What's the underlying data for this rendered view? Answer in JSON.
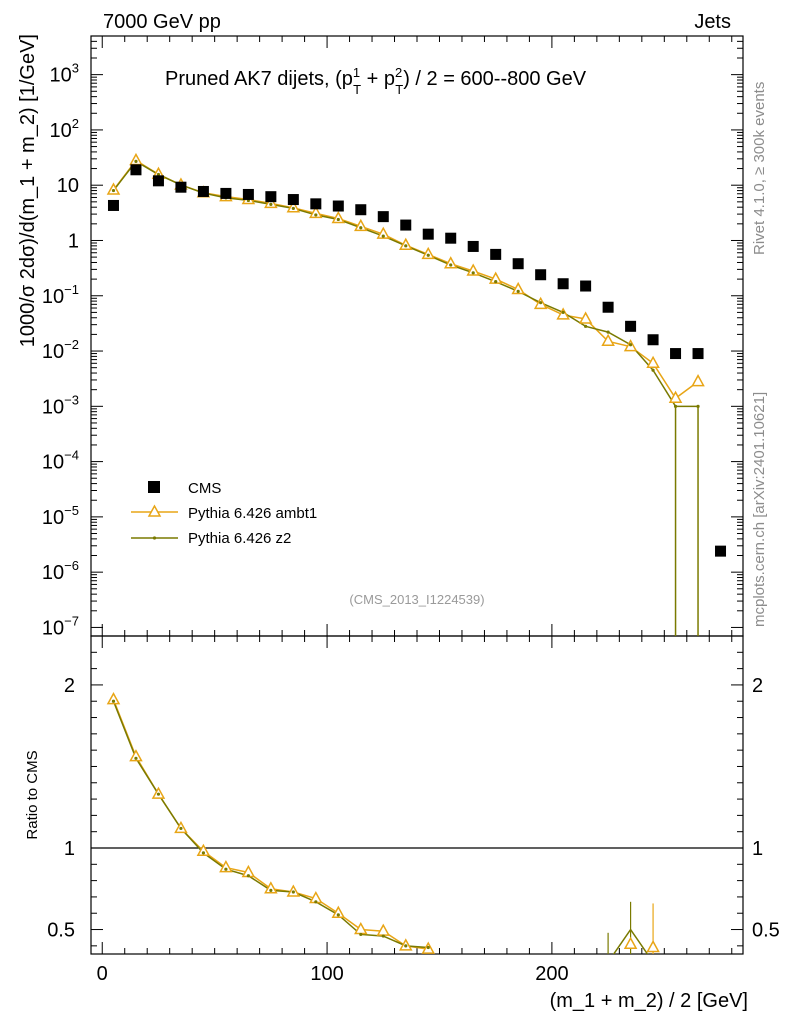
{
  "header": {
    "left": "7000 GeV pp",
    "right": "Jets"
  },
  "side_labels": {
    "rivet": "Rivet 4.1.0, ≥ 300k events",
    "mcplots": "mcplots.cern.ch [arXiv:2401.10621]"
  },
  "colors": {
    "cms": "#000000",
    "ambt1": "#e8a516",
    "z2": "#7a7a00",
    "label_gray": "#8c8c8c"
  },
  "chart_data": [
    {
      "type": "scatter",
      "panel": "main",
      "title_main": "Pruned AK7 dijets, (p",
      "title_sup1": "1",
      "title_sub1": "T",
      "title_mid": " + p",
      "title_sup2": "2",
      "title_sub2": "T",
      "title_end": ") / 2 = 600--800 GeV",
      "ylabel": "1000/σ  2dσ)/d(m_1 + m_2) [1/GeV]",
      "yscale": "log",
      "ylim": [
        7e-08,
        5000
      ],
      "xlim": [
        -5,
        285
      ],
      "ytick_labels": [
        {
          "base": "10",
          "exp": "3",
          "value": 1000
        },
        {
          "base": "10",
          "exp": "2",
          "value": 100
        },
        {
          "base": "10",
          "exp": "",
          "value": 10
        },
        {
          "base": "1",
          "exp": "",
          "value": 1
        },
        {
          "base": "10",
          "exp": "−1",
          "value": 0.1
        },
        {
          "base": "10",
          "exp": "−2",
          "value": 0.01
        },
        {
          "base": "10",
          "exp": "−3",
          "value": 0.001
        },
        {
          "base": "10",
          "exp": "−4",
          "value": 0.0001
        },
        {
          "base": "10",
          "exp": "−5",
          "value": 1e-05
        },
        {
          "base": "10",
          "exp": "−6",
          "value": 1e-06
        },
        {
          "base": "10",
          "exp": "−7",
          "value": 1e-07
        }
      ],
      "watermark": "(CMS_2013_I1224539)",
      "legend_position": "lower-left",
      "legend": [
        "CMS",
        "Pythia 6.426 ambt1",
        "Pythia 6.426 z2"
      ],
      "series": [
        {
          "name": "CMS",
          "x": [
            5,
            15,
            25,
            35,
            45,
            55,
            65,
            75,
            85,
            95,
            105,
            115,
            125,
            135,
            145,
            155,
            165,
            175,
            185,
            195,
            205,
            215,
            225,
            235,
            245,
            255,
            265,
            275
          ],
          "y": [
            4.3,
            19,
            12,
            9.2,
            7.7,
            7.1,
            6.8,
            6.2,
            5.5,
            4.6,
            4.2,
            3.6,
            2.7,
            1.9,
            1.3,
            1.1,
            0.78,
            0.56,
            0.38,
            0.24,
            0.165,
            0.15,
            0.062,
            0.028,
            0.016,
            0.009,
            0.009,
            2.4e-06
          ]
        },
        {
          "name": "Pythia 6.426 ambt1",
          "x": [
            5,
            15,
            25,
            35,
            45,
            55,
            65,
            75,
            85,
            95,
            105,
            115,
            125,
            135,
            145,
            155,
            165,
            175,
            185,
            195,
            205,
            215,
            225,
            235,
            245,
            255,
            265
          ],
          "y": [
            8.2,
            28,
            15.8,
            10.1,
            7.3,
            6.2,
            5.5,
            4.7,
            3.9,
            3.1,
            2.5,
            1.8,
            1.3,
            0.82,
            0.56,
            0.38,
            0.28,
            0.2,
            0.13,
            0.07,
            0.045,
            0.038,
            0.015,
            0.012,
            0.006,
            0.0014,
            0.0028
          ]
        },
        {
          "name": "Pythia 6.426 z2",
          "x": [
            5,
            15,
            25,
            35,
            45,
            55,
            65,
            75,
            85,
            95,
            105,
            115,
            125,
            135,
            145,
            155,
            165,
            175,
            185,
            195,
            205,
            215,
            225,
            235,
            245,
            255,
            265
          ],
          "y": [
            8.0,
            27,
            15.6,
            10.1,
            7.2,
            5.9,
            5.3,
            4.5,
            3.8,
            2.9,
            2.4,
            1.7,
            1.2,
            0.8,
            0.54,
            0.36,
            0.26,
            0.18,
            0.12,
            0.075,
            0.05,
            0.028,
            0.022,
            0.013,
            0.0045,
            0.001,
            0.001
          ]
        }
      ]
    },
    {
      "type": "line",
      "panel": "ratio",
      "ylabel": "Ratio to CMS",
      "xlabel": "(m_1 + m_2) / 2 [GeV]",
      "ylim": [
        0.35,
        2.3
      ],
      "xlim": [
        -5,
        285
      ],
      "x_tick_labels": [
        "0",
        "100",
        "200"
      ],
      "x_ticks": [
        0,
        100,
        200
      ],
      "y_tick_labels": [
        "0.5",
        "1",
        "2"
      ],
      "y_ticks": [
        0.5,
        1,
        2
      ],
      "reference_line": 1,
      "series": [
        {
          "name": "Pythia 6.426 ambt1",
          "x": [
            5,
            15,
            25,
            35,
            45,
            55,
            65,
            75,
            85,
            95,
            105,
            115,
            125,
            135,
            145
          ],
          "y": [
            1.91,
            1.56,
            1.33,
            1.12,
            0.98,
            0.88,
            0.85,
            0.75,
            0.73,
            0.69,
            0.6,
            0.5,
            0.49,
            0.4,
            0.38
          ]
        },
        {
          "name": "Pythia 6.426 z2",
          "x": [
            5,
            15,
            25,
            35,
            45,
            55,
            65,
            75,
            85,
            95,
            105,
            115,
            125,
            135,
            145
          ],
          "y": [
            1.9,
            1.55,
            1.33,
            1.12,
            0.97,
            0.87,
            0.83,
            0.74,
            0.73,
            0.67,
            0.59,
            0.47,
            0.46,
            0.4,
            0.39
          ]
        },
        {
          "name": "Pythia 6.426 ambt1 tail",
          "x": [
            235,
            245
          ],
          "y": [
            0.41,
            0.39
          ]
        },
        {
          "name": "Pythia 6.426 z2 tail",
          "x": [
            225,
            235,
            245
          ],
          "y": [
            0.3,
            0.5,
            0.3
          ]
        }
      ]
    }
  ]
}
